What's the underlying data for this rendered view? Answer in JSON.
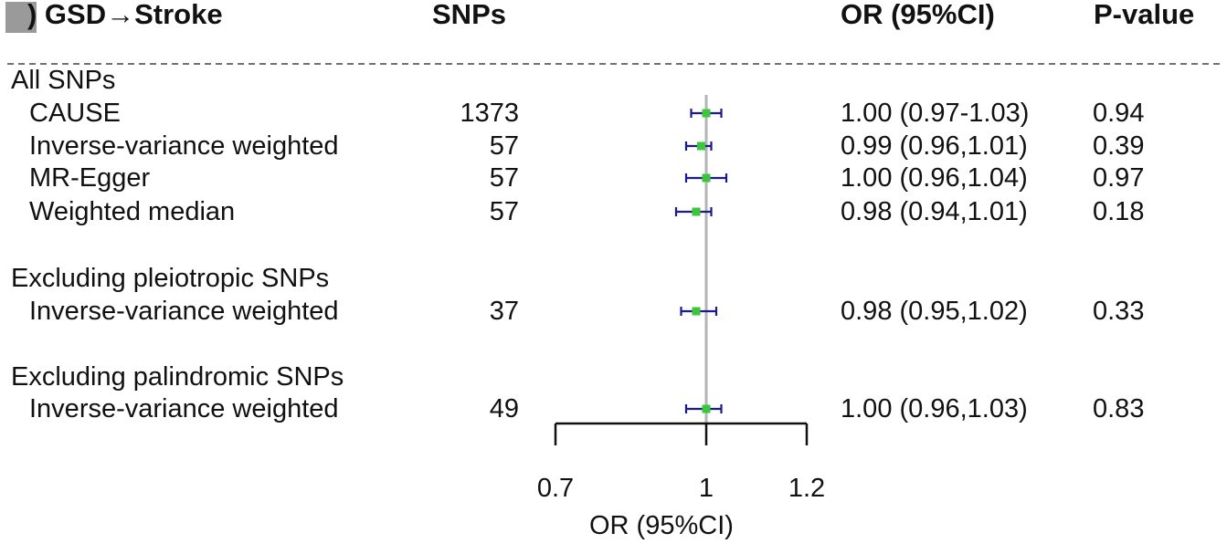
{
  "header": {
    "title": ") GSD→Stroke",
    "snps": "SNPs",
    "or": "OR (95%CI)",
    "pvalue": "P-value"
  },
  "chart_data": {
    "type": "forest",
    "groups": [
      {
        "label": "All SNPs",
        "rows": [
          {
            "method": "CAUSE",
            "snps": "1373",
            "or": 1.0,
            "lower": 0.97,
            "upper": 1.03,
            "or_text": "1.00 (0.97-1.03)",
            "p": "0.94"
          },
          {
            "method": "Inverse-variance weighted",
            "snps": "57",
            "or": 0.99,
            "lower": 0.96,
            "upper": 1.01,
            "or_text": "0.99 (0.96,1.01)",
            "p": "0.39"
          },
          {
            "method": "MR-Egger",
            "snps": "57",
            "or": 1.0,
            "lower": 0.96,
            "upper": 1.04,
            "or_text": "1.00 (0.96,1.04)",
            "p": "0.97"
          },
          {
            "method": "Weighted median",
            "snps": "57",
            "or": 0.98,
            "lower": 0.94,
            "upper": 1.01,
            "or_text": "0.98 (0.94,1.01)",
            "p": "0.18"
          }
        ]
      },
      {
        "label": "Excluding pleiotropic SNPs",
        "rows": [
          {
            "method": "Inverse-variance weighted",
            "snps": "37",
            "or": 0.98,
            "lower": 0.95,
            "upper": 1.02,
            "or_text": "0.98 (0.95,1.02)",
            "p": "0.33"
          }
        ]
      },
      {
        "label": "Excluding palindromic SNPs",
        "rows": [
          {
            "method": "Inverse-variance weighted",
            "snps": "49",
            "or": 1.0,
            "lower": 0.96,
            "upper": 1.03,
            "or_text": "1.00 (0.96,1.03)",
            "p": "0.83"
          }
        ]
      }
    ],
    "xlim": [
      0.7,
      1.2
    ],
    "ticks": [
      "0.7",
      "1",
      "1.2"
    ],
    "reference_line": 1,
    "xlabel": "OR (95%CI)",
    "colors": {
      "point": "#3cc63c",
      "ci": "#1a1a8c",
      "ref": "#b4b4b4",
      "axis": "#111111"
    }
  }
}
